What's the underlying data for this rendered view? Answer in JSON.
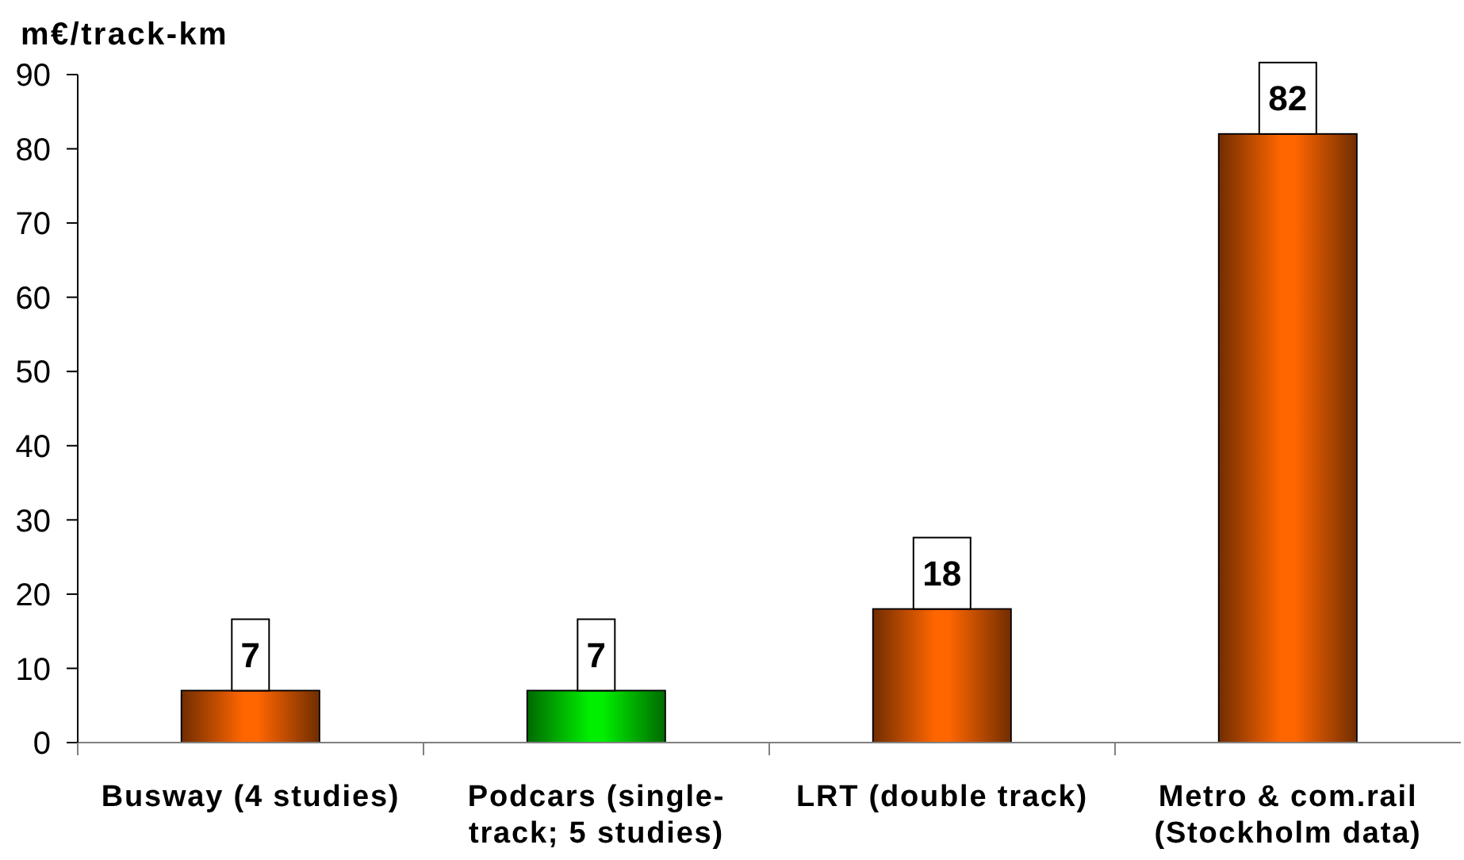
{
  "chart_data": {
    "type": "bar",
    "ylabel": "m€/track-km",
    "categories": [
      "Busway (4 studies)",
      "Podcars (single-track; 5 studies)",
      "LRT (double track)",
      "Metro & com.rail (Stockholm data)"
    ],
    "values": [
      7,
      7,
      18,
      82
    ],
    "colors": [
      "#ff6600",
      "#00ee00",
      "#ff6600",
      "#ff6600"
    ],
    "ylim": [
      0,
      90
    ],
    "yticks": [
      0,
      10,
      20,
      30,
      40,
      50,
      60,
      70,
      80,
      90
    ],
    "grid": false,
    "data_labels": true
  }
}
